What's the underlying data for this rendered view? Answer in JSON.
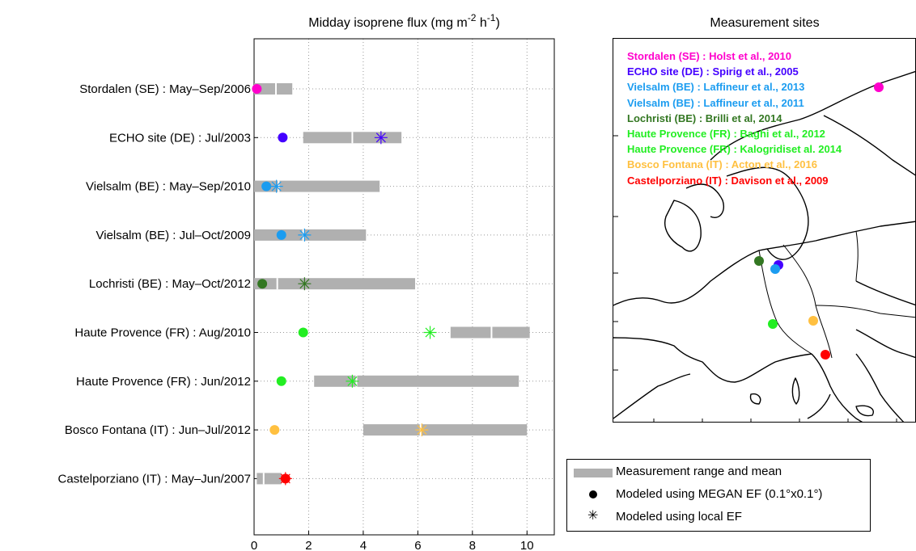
{
  "chart_data": {
    "type": "bar",
    "orientation": "horizontal",
    "title": "Midday isoprene flux (mg m",
    "title_sup1": "-2",
    "title_mid": " h",
    "title_sup2": "-1",
    "title_end": ")",
    "xlim": [
      0,
      11
    ],
    "xticks": [
      0,
      2,
      4,
      6,
      8,
      10
    ],
    "grid": true,
    "sites": [
      {
        "label": "Stordalen (SE) : May–Sep/2006",
        "color": "#ff00cc",
        "range": [
          0,
          1.4
        ],
        "mean": 0.8,
        "megan": 0.1,
        "local": null
      },
      {
        "label": "ECHO site (DE) : Jul/2003",
        "color": "#4400ff",
        "range": [
          1.8,
          5.4
        ],
        "mean": 3.6,
        "megan": 1.05,
        "local": 4.65
      },
      {
        "label": "Vielsalm (BE) : May–Sep/2010",
        "color": "#1b9cf0",
        "range": [
          0,
          4.6
        ],
        "mean": 0.9,
        "megan": 0.45,
        "local": 0.82
      },
      {
        "label": "Vielsalm (BE) : Jul–Oct/2009",
        "color": "#1b9cf0",
        "range": [
          0,
          4.1
        ],
        "mean": 1.8,
        "megan": 1.0,
        "local": 1.85
      },
      {
        "label": "Lochristi (BE) : May–Oct/2012",
        "color": "#337722",
        "range": [
          0,
          5.9
        ],
        "mean": 0.85,
        "megan": 0.3,
        "local": 1.85
      },
      {
        "label": "Haute Provence (FR) : Aug/2010",
        "color": "#22ee22",
        "range": [
          7.2,
          10.1
        ],
        "mean": 8.7,
        "megan": 1.8,
        "local": 6.45
      },
      {
        "label": "Haute Provence (FR) : Jun/2012",
        "color": "#22ee22",
        "range": [
          2.2,
          9.7
        ],
        "mean": 3.75,
        "megan": 1.0,
        "local": 3.6
      },
      {
        "label": "Bosco Fontana (IT) : Jun–Jul/2012",
        "color": "#ffc040",
        "range": [
          4.0,
          10.0
        ],
        "mean": 6.1,
        "megan": 0.75,
        "local": 6.15
      },
      {
        "label": "Castelporziano (IT) : May–Jun/2007",
        "color": "#ff0000",
        "range": [
          0.1,
          1.0
        ],
        "mean": 0.35,
        "megan": 1.15,
        "local": 1.15
      }
    ]
  },
  "map": {
    "title": "Measurement sites",
    "legend": [
      {
        "text": "Stordalen (SE) : Holst et al., 2010",
        "color": "#ff00cc"
      },
      {
        "text": "ECHO site (DE) : Spirig et al., 2005",
        "color": "#4400ff"
      },
      {
        "text": "Vielsalm (BE) : Laffineur et al., 2013",
        "color": "#1b9cf0"
      },
      {
        "text": "Vielsalm (BE) : Laffineur et al., 2011",
        "color": "#1b9cf0"
      },
      {
        "text": "Lochristi (BE) : Brilli et al, 2014",
        "color": "#337722"
      },
      {
        "text": "Haute Provence (FR) : Baghi et al., 2012",
        "color": "#22ee22"
      },
      {
        "text": "Haute Provence (FR) : Kalogridiset al. 2014",
        "color": "#22ee22"
      },
      {
        "text": "Bosco Fontana (IT) : Acton et al., 2016",
        "color": "#ffc040"
      },
      {
        "text": "Castelporziano (IT) : Davison et al., 2009",
        "color": "#ff0000"
      }
    ]
  },
  "legend": {
    "range_label": "Measurement range and mean",
    "megan_label": "Modeled using MEGAN EF (0.1°x0.1°)",
    "local_label": "Modeled using local EF"
  }
}
